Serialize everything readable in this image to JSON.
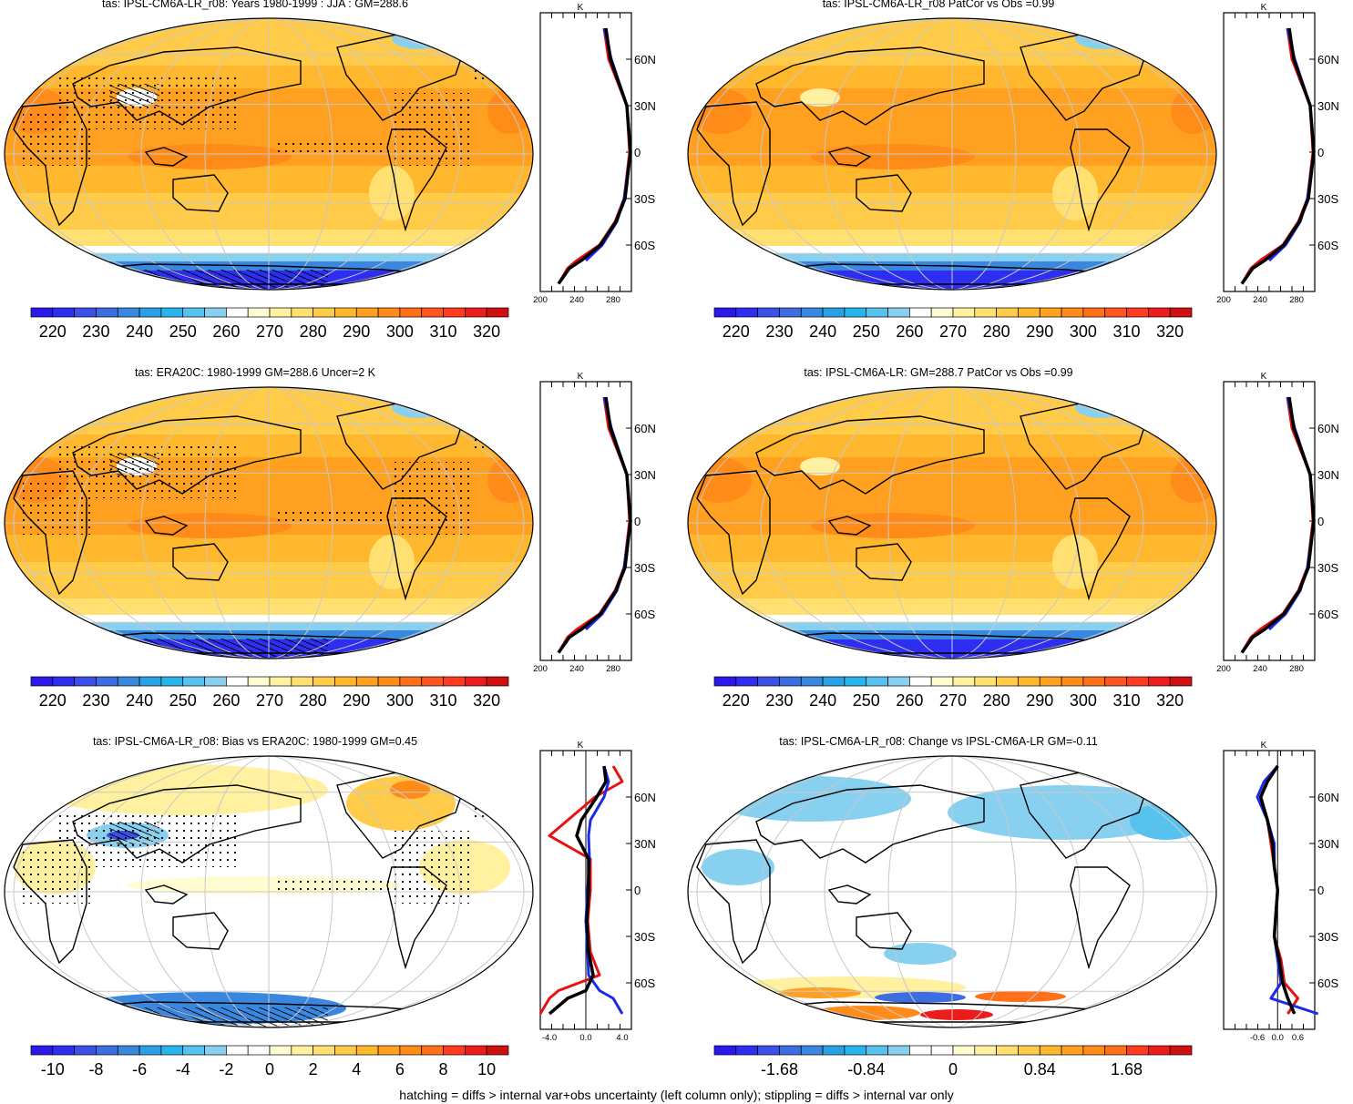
{
  "panels": [
    {
      "id": "p1",
      "title": "tas: IPSL-CM6A-LR_r08: Years 1980-1999 : JJA : GM=288.6",
      "scheme": "abs",
      "stipple": true,
      "hatch": true
    },
    {
      "id": "p2",
      "title": "tas: IPSL-CM6A-LR_r08 PatCor vs Obs =0.99",
      "scheme": "abs",
      "stipple": false,
      "hatch": false
    },
    {
      "id": "p3",
      "title": "tas: ERA20C: 1980-1999 GM=288.6 Uncer=2 K",
      "scheme": "abs",
      "stipple": true,
      "hatch": true
    },
    {
      "id": "p4",
      "title": "tas: IPSL-CM6A-LR: GM=288.7 PatCor vs Obs =0.99",
      "scheme": "abs",
      "stipple": false,
      "hatch": false
    },
    {
      "id": "p5",
      "title": "tas: IPSL-CM6A-LR_r08: Bias vs ERA20C: 1980-1999 GM=0.45",
      "scheme": "bias",
      "stipple": true,
      "hatch": true
    },
    {
      "id": "p6",
      "title": "tas: IPSL-CM6A-LR_r08: Change vs IPSL-CM6A-LR GM=-0.11",
      "scheme": "change",
      "stipple": false,
      "hatch": false
    }
  ],
  "colorbars": {
    "abs": {
      "colors": [
        "#2a19ea",
        "#2d2ef0",
        "#3b50e6",
        "#3e6de2",
        "#3a87e0",
        "#2aa0e6",
        "#28b4ec",
        "#58c2ee",
        "#88d0f0",
        "#ffffff",
        "#fffcd2",
        "#fff1a0",
        "#ffe070",
        "#ffcb48",
        "#ffb82e",
        "#ffa020",
        "#ff8c18",
        "#ff7018",
        "#ff5520",
        "#ff3a20",
        "#ec1c1c",
        "#cf1010"
      ],
      "ticks": [
        "220",
        "230",
        "240",
        "250",
        "260",
        "270",
        "280",
        "290",
        "300",
        "310",
        "320"
      ]
    },
    "bias": {
      "colors": [
        "#2a19ea",
        "#2d2ef0",
        "#3b50e6",
        "#3e6de2",
        "#3a87e0",
        "#2aa0e6",
        "#28b4ec",
        "#58c2ee",
        "#88d0f0",
        "#ffffff",
        "#ffffff",
        "#fffcd2",
        "#fff1a0",
        "#ffe070",
        "#ffcb48",
        "#ffb82e",
        "#ffa020",
        "#ff8c18",
        "#ff7018",
        "#ff3a20",
        "#ec1c1c",
        "#cf1010"
      ],
      "ticks": [
        "-10",
        "-8",
        "-6",
        "-4",
        "-2",
        "0",
        "2",
        "4",
        "6",
        "8",
        "10"
      ]
    },
    "change": {
      "colors": [
        "#2a19ea",
        "#2d2ef0",
        "#3b50e6",
        "#3e6de2",
        "#3a87e0",
        "#2aa0e6",
        "#28b4ec",
        "#58c2ee",
        "#88d0f0",
        "#ffffff",
        "#ffffff",
        "#fffcd2",
        "#fff1a0",
        "#ffe070",
        "#ffcb48",
        "#ffb82e",
        "#ffa020",
        "#ff8c18",
        "#ff7018",
        "#ff3a20",
        "#ec1c1c",
        "#cf1010"
      ],
      "ticks": [
        "-1.68",
        "-0.84",
        "0",
        "0.84",
        "1.68"
      ]
    }
  },
  "profiles": {
    "lat_labels": [
      "60N",
      "30N",
      "0",
      "30S",
      "60S"
    ],
    "unit": "K",
    "abs_x_ticks": [
      "200",
      "240",
      "280"
    ],
    "bias_x_ticks": [
      "-4.0",
      "0.0",
      "4.0"
    ],
    "change_x_ticks": [
      "-0.6",
      "0.0",
      "0.6"
    ]
  },
  "map_colors": {
    "land_outline": "#000000",
    "graticule": "#c8c8c8"
  },
  "footnote": "hatching = diffs > internal var+obs uncertainty (left column only); stippling = diffs > internal var only",
  "chart_data": [
    {
      "type": "heatmap",
      "title": "tas: IPSL-CM6A-LR_r08: Years 1980-1999 : JJA : GM=288.6",
      "projection": "Robinson",
      "colorbar_ticks": [
        220,
        230,
        240,
        250,
        260,
        270,
        280,
        290,
        300,
        310,
        320
      ],
      "zonal_profile": {
        "x_ticks": [
          200,
          240,
          280
        ],
        "y_ticks": [
          "60N",
          "30N",
          "0",
          "30S",
          "60S"
        ],
        "unit": "K",
        "series": [
          {
            "color": "red",
            "lat": [
              80,
              60,
              30,
              0,
              -30,
              -45,
              -60,
              -70,
              -75,
              -85
            ],
            "values": [
              270,
              275,
              295,
              298,
              292,
              282,
              265,
              240,
              230,
              220
            ]
          },
          {
            "color": "blue",
            "lat": [
              80,
              60,
              30,
              0,
              -30,
              -45,
              -60,
              -70
            ],
            "values": [
              270,
              278,
              295,
              299,
              292,
              284,
              268,
              250
            ]
          },
          {
            "color": "black",
            "lat": [
              80,
              60,
              30,
              0,
              -30,
              -45,
              -60,
              -70,
              -75,
              -85
            ],
            "values": [
              272,
              277,
              295,
              299,
              293,
              283,
              266,
              245,
              232,
              220
            ]
          }
        ]
      }
    },
    {
      "type": "heatmap",
      "title": "tas: IPSL-CM6A-LR_r08 PatCor vs Obs =0.99",
      "projection": "Robinson",
      "colorbar_ticks": [
        220,
        230,
        240,
        250,
        260,
        270,
        280,
        290,
        300,
        310,
        320
      ]
    },
    {
      "type": "heatmap",
      "title": "tas: ERA20C: 1980-1999 GM=288.6 Uncer=2 K",
      "projection": "Robinson",
      "colorbar_ticks": [
        220,
        230,
        240,
        250,
        260,
        270,
        280,
        290,
        300,
        310,
        320
      ]
    },
    {
      "type": "heatmap",
      "title": "tas: IPSL-CM6A-LR: GM=288.7 PatCor vs Obs =0.99",
      "projection": "Robinson",
      "colorbar_ticks": [
        220,
        230,
        240,
        250,
        260,
        270,
        280,
        290,
        300,
        310,
        320
      ]
    },
    {
      "type": "heatmap",
      "title": "tas: IPSL-CM6A-LR_r08: Bias vs ERA20C: 1980-1999 GM=0.45",
      "projection": "Robinson",
      "colorbar_ticks": [
        -10,
        -8,
        -6,
        -4,
        -2,
        0,
        2,
        4,
        6,
        8,
        10
      ],
      "zonal_profile": {
        "x_ticks": [
          -4.0,
          0.0,
          4.0
        ],
        "y_ticks": [
          "60N",
          "30N",
          "0",
          "30S",
          "60S"
        ],
        "unit": "K",
        "series": [
          {
            "color": "red",
            "lat": [
              80,
              70,
              60,
              45,
              35,
              20,
              0,
              -20,
              -40,
              -55,
              -65,
              -70,
              -80
            ],
            "values": [
              3,
              4,
              1,
              -2,
              -4,
              0.5,
              0.5,
              0.2,
              0.5,
              1.5,
              -3,
              -4,
              -5
            ]
          },
          {
            "color": "blue",
            "lat": [
              80,
              70,
              60,
              45,
              35,
              20,
              0,
              -20,
              -40,
              -55,
              -65,
              -70,
              -80
            ],
            "values": [
              2,
              2.5,
              2,
              0.5,
              0.3,
              0.4,
              0.2,
              0,
              0.2,
              0.3,
              1.5,
              3,
              4
            ]
          },
          {
            "color": "black",
            "lat": [
              80,
              70,
              60,
              45,
              35,
              20,
              0,
              -20,
              -40,
              -55,
              -65,
              -70,
              -80
            ],
            "values": [
              2,
              2.2,
              1.2,
              -0.5,
              -1,
              0.3,
              0.3,
              0.1,
              0.3,
              0.8,
              0,
              -2,
              -4
            ]
          }
        ]
      }
    },
    {
      "type": "heatmap",
      "title": "tas: IPSL-CM6A-LR_r08: Change vs IPSL-CM6A-LR GM=-0.11",
      "projection": "Robinson",
      "colorbar_ticks": [
        -1.68,
        -0.84,
        0,
        0.84,
        1.68
      ],
      "zonal_profile": {
        "x_ticks": [
          -0.6,
          0.0,
          0.6
        ],
        "y_ticks": [
          "60N",
          "30N",
          "0",
          "30S",
          "60S"
        ],
        "unit": "K",
        "series": [
          {
            "color": "red",
            "lat": [
              80,
              70,
              60,
              45,
              30,
              15,
              0,
              -15,
              -30,
              -45,
              -60,
              -70,
              -80
            ],
            "values": [
              0,
              -0.3,
              -0.5,
              -0.3,
              -0.2,
              -0.1,
              0,
              -0.05,
              -0.1,
              0.1,
              0.2,
              0.6,
              0.3
            ]
          },
          {
            "color": "blue",
            "lat": [
              80,
              70,
              60,
              45,
              30,
              15,
              0,
              -15,
              -30,
              -45,
              -60,
              -70,
              -80
            ],
            "values": [
              0,
              -0.4,
              -0.6,
              -0.3,
              -0.1,
              -0.1,
              0,
              -0.05,
              -0.1,
              0,
              0.1,
              -0.2,
              1.2
            ]
          },
          {
            "color": "black",
            "lat": [
              80,
              70,
              60,
              45,
              30,
              15,
              0,
              -15,
              -30,
              -45,
              -60,
              -70,
              -80
            ],
            "values": [
              0,
              -0.3,
              -0.5,
              -0.3,
              -0.15,
              -0.1,
              0,
              -0.05,
              -0.1,
              0.05,
              0.15,
              0.3,
              0.5
            ]
          }
        ]
      }
    }
  ]
}
